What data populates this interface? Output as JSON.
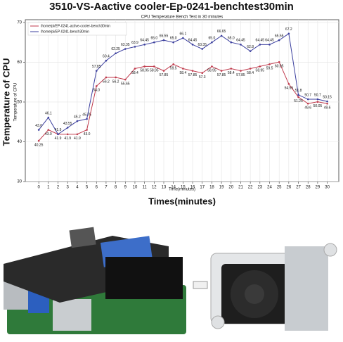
{
  "chart_data": {
    "type": "line",
    "title": "3510-VS-Aactive cooler-Ep-0241-benchtest30min",
    "subtitle": "CPU Temperature Bench Test in 30 minutes",
    "y_label": "Temperature of CPU",
    "y_label_inner": "Temperature of CPU",
    "x_label": "Times(minutes)",
    "x_label_inner": "Time(minutes)",
    "x": [
      0,
      1,
      2,
      3,
      4,
      5,
      6,
      7,
      8,
      9,
      10,
      11,
      12,
      13,
      14,
      15,
      16,
      17,
      18,
      19,
      20,
      21,
      22,
      23,
      24,
      25,
      26,
      27,
      28,
      29,
      30
    ],
    "xlim": [
      -1.4,
      31.2
    ],
    "ylim": [
      30,
      70.7
    ],
    "xticks": [
      0,
      1,
      2,
      3,
      4,
      5,
      6,
      7,
      8,
      9,
      10,
      11,
      12,
      13,
      14,
      15,
      16,
      17,
      18,
      19,
      20,
      21,
      22,
      23,
      24,
      25,
      26,
      27,
      28,
      29,
      30
    ],
    "yticks": [
      30,
      40,
      50,
      60,
      70
    ],
    "grid": true,
    "legend": "upper left",
    "series": [
      {
        "name": "/home/pi/EP-0241-active-cooler-bench30min",
        "color": "#c03a4c",
        "values": [
          40.25,
          43.0,
          41.9,
          41.9,
          41.9,
          43.0,
          54.0,
          56.2,
          56.2,
          55.65,
          58.4,
          58.95,
          58.95,
          57.85,
          59.5,
          58.4,
          57.85,
          57.3,
          58.95,
          57.85,
          58.4,
          57.85,
          58.4,
          58.95,
          59.5,
          60.05,
          54.55,
          51.25,
          49.6,
          50.05,
          49.6
        ],
        "value_labels": [
          "40.25",
          "43.0",
          "41.9",
          "41.9",
          "41.9",
          "43.0",
          "54.0",
          "56.2",
          "56.2",
          "55.65",
          "58.4",
          "58.95",
          "58.95",
          "57.85",
          "59.5",
          "58.4",
          "57.85",
          "57.3",
          "58.95",
          "57.85",
          "58.4",
          "57.85",
          "58.4",
          "58.95",
          "59.5",
          "60.05",
          "54.55",
          "51.25",
          "49.6",
          "50.05",
          "49.6"
        ]
      },
      {
        "name": "/home/pi/EP-0241-bench30min",
        "color": "#3b3f9e",
        "values": [
          43.0,
          46.1,
          41.9,
          43.55,
          45.2,
          45.75,
          57.85,
          60.4,
          62.25,
          63.35,
          63.9,
          64.45,
          65.0,
          65.55,
          65.0,
          66.1,
          64.45,
          63.35,
          65.0,
          66.65,
          65.0,
          64.45,
          62.8,
          64.45,
          64.45,
          65.55,
          67.2,
          51.8,
          50.7,
          50.7,
          50.15
        ],
        "value_labels": [
          "43.0",
          "46.1",
          "41.9",
          "43.55",
          "45.2",
          "45.75",
          "57.85",
          "60.4",
          "62.25",
          "63.35",
          "63.9",
          "64.45",
          "65.0",
          "65.55",
          "65.0",
          "66.1",
          "64.45",
          "63.35",
          "65.0",
          "66.65",
          "65.0",
          "64.45",
          "62.8",
          "64.45",
          "64.45",
          "65.55",
          "67.2",
          "51.8",
          "50.7",
          "50.7",
          "50.15"
        ]
      }
    ]
  }
}
